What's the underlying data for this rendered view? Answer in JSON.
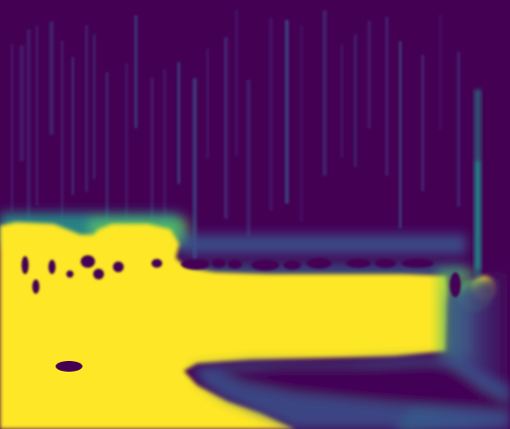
{
  "chart_data": {
    "type": "heatmap",
    "colormap": "viridis",
    "colormap_colors": [
      "#440154",
      "#3b528b",
      "#21918c",
      "#5ec962",
      "#fde725"
    ],
    "title": "",
    "xlabel": "",
    "ylabel": "",
    "axes_visible": false,
    "colorbar_visible": false,
    "value_range": [
      0,
      1
    ],
    "regions": [
      {
        "name": "upper-band",
        "level": 0.02,
        "description_level": "low"
      },
      {
        "name": "transition-band",
        "level": 0.35
      },
      {
        "name": "lower-block",
        "level": 1.0
      },
      {
        "name": "right-edge-feature",
        "level": 0.6
      },
      {
        "name": "lower-right-trough",
        "level": 0.05
      }
    ]
  }
}
